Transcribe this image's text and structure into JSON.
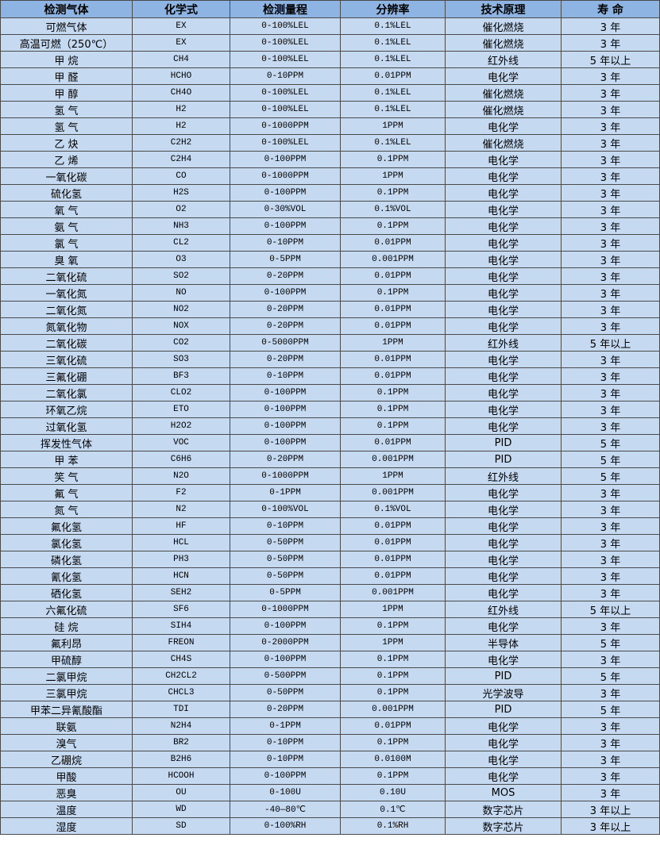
{
  "table": {
    "headers": [
      "检测气体",
      "化学式",
      "检测量程",
      "分辨率",
      "技术原理",
      "寿 命"
    ],
    "rows": [
      [
        "可燃气体",
        "EX",
        "0-100%LEL",
        "0.1%LEL",
        "催化燃烧",
        "3 年"
      ],
      [
        "高温可燃（250℃）",
        "EX",
        "0-100%LEL",
        "0.1%LEL",
        "催化燃烧",
        "3 年"
      ],
      [
        "甲 烷",
        "CH4",
        "0-100%LEL",
        "0.1%LEL",
        "红外线",
        "5 年以上"
      ],
      [
        "甲 醛",
        "HCHO",
        "0-10PPM",
        "0.01PPM",
        "电化学",
        "3 年"
      ],
      [
        "甲 醇",
        "CH4O",
        "0-100%LEL",
        "0.1%LEL",
        "催化燃烧",
        "3 年"
      ],
      [
        "氢 气",
        "H2",
        "0-100%LEL",
        "0.1%LEL",
        "催化燃烧",
        "3 年"
      ],
      [
        "氢 气",
        "H2",
        "0-1000PPM",
        "1PPM",
        "电化学",
        "3 年"
      ],
      [
        "乙 炔",
        "C2H2",
        "0-100%LEL",
        "0.1%LEL",
        "催化燃烧",
        "3 年"
      ],
      [
        "乙 烯",
        "C2H4",
        "0-100PPM",
        "0.1PPM",
        "电化学",
        "3 年"
      ],
      [
        "一氧化碳",
        "CO",
        "0-1000PPM",
        "1PPM",
        "电化学",
        "3 年"
      ],
      [
        "硫化氢",
        "H2S",
        "0-100PPM",
        "0.1PPM",
        "电化学",
        "3 年"
      ],
      [
        "氧 气",
        "O2",
        "0-30%VOL",
        "0.1%VOL",
        "电化学",
        "3 年"
      ],
      [
        "氨 气",
        "NH3",
        "0-100PPM",
        "0.1PPM",
        "电化学",
        "3 年"
      ],
      [
        "氯 气",
        "CL2",
        "0-10PPM",
        "0.01PPM",
        "电化学",
        "3 年"
      ],
      [
        "臭 氧",
        "O3",
        "0-5PPM",
        "0.001PPM",
        "电化学",
        "3 年"
      ],
      [
        "二氧化硫",
        "SO2",
        "0-20PPM",
        "0.01PPM",
        "电化学",
        "3 年"
      ],
      [
        "一氧化氮",
        "NO",
        "0-100PPM",
        "0.1PPM",
        "电化学",
        "3 年"
      ],
      [
        "二氧化氮",
        "NO2",
        "0-20PPM",
        "0.01PPM",
        "电化学",
        "3 年"
      ],
      [
        "氮氧化物",
        "NOX",
        "0-20PPM",
        "0.01PPM",
        "电化学",
        "3 年"
      ],
      [
        "二氧化碳",
        "CO2",
        "0-5000PPM",
        "1PPM",
        "红外线",
        "5 年以上"
      ],
      [
        "三氧化硫",
        "SO3",
        "0-20PPM",
        "0.01PPM",
        "电化学",
        "3 年"
      ],
      [
        "三氟化硼",
        "BF3",
        "0-10PPM",
        "0.01PPM",
        "电化学",
        "3 年"
      ],
      [
        "二氧化氯",
        "CLO2",
        "0-100PPM",
        "0.1PPM",
        "电化学",
        "3 年"
      ],
      [
        "环氧乙烷",
        "ETO",
        "0-100PPM",
        "0.1PPM",
        "电化学",
        "3 年"
      ],
      [
        "过氧化氢",
        "H2O2",
        "0-100PPM",
        "0.1PPM",
        "电化学",
        "3 年"
      ],
      [
        "挥发性气体",
        "VOC",
        "0-100PPM",
        "0.01PPM",
        "PID",
        "5 年"
      ],
      [
        "甲 苯",
        "C6H6",
        "0-20PPM",
        "0.001PPM",
        "PID",
        "5 年"
      ],
      [
        "笑 气",
        "N2O",
        "0-1000PPM",
        "1PPM",
        "红外线",
        "5 年"
      ],
      [
        "氟 气",
        "F2",
        "0-1PPM",
        "0.001PPM",
        "电化学",
        "3 年"
      ],
      [
        "氮 气",
        "N2",
        "0-100%VOL",
        "0.1%VOL",
        "电化学",
        "3 年"
      ],
      [
        "氟化氢",
        "HF",
        "0-10PPM",
        "0.01PPM",
        "电化学",
        "3 年"
      ],
      [
        "氯化氢",
        "HCL",
        "0-50PPM",
        "0.01PPM",
        "电化学",
        "3 年"
      ],
      [
        "磷化氢",
        "PH3",
        "0-50PPM",
        "0.01PPM",
        "电化学",
        "3 年"
      ],
      [
        "氰化氢",
        "HCN",
        "0-50PPM",
        "0.01PPM",
        "电化学",
        "3 年"
      ],
      [
        "硒化氢",
        "SEH2",
        "0-5PPM",
        "0.001PPM",
        "电化学",
        "3 年"
      ],
      [
        "六氟化硫",
        "SF6",
        "0-1000PPM",
        "1PPM",
        "红外线",
        "5 年以上"
      ],
      [
        "硅 烷",
        "SIH4",
        "0-100PPM",
        "0.1PPM",
        "电化学",
        "3 年"
      ],
      [
        "氟利昂",
        "FREON",
        "0-2000PPM",
        "1PPM",
        "半导体",
        "5 年"
      ],
      [
        "甲硫醇",
        "CH4S",
        "0-100PPM",
        "0.1PPM",
        "电化学",
        "3 年"
      ],
      [
        "二氯甲烷",
        "CH2CL2",
        "0-500PPM",
        "0.1PPM",
        "PID",
        "5 年"
      ],
      [
        "三氯甲烷",
        "CHCL3",
        "0-50PPM",
        "0.1PPM",
        "光学波导",
        "3 年"
      ],
      [
        "甲苯二异氰酸酯",
        "TDI",
        "0-20PPM",
        "0.001PPM",
        "PID",
        "5 年"
      ],
      [
        "联氨",
        "N2H4",
        "0-1PPM",
        "0.01PPM",
        "电化学",
        "3 年"
      ],
      [
        "溴气",
        "BR2",
        "0-10PPM",
        "0.1PPM",
        "电化学",
        "3 年"
      ],
      [
        "乙硼烷",
        "B2H6",
        "0-10PPM",
        "0.0100M",
        "电化学",
        "3 年"
      ],
      [
        "甲酸",
        "HCOOH",
        "0-100PPM",
        "0.1PPM",
        "电化学",
        "3 年"
      ],
      [
        "恶臭",
        "OU",
        "0-100U",
        "0.10U",
        "MOS",
        "3 年"
      ],
      [
        "温度",
        "WD",
        "-40—80℃",
        "0.1℃",
        "数字芯片",
        "3 年以上"
      ],
      [
        "湿度",
        "SD",
        "0-100%RH",
        "0.1%RH",
        "数字芯片",
        "3 年以上"
      ]
    ]
  },
  "colors": {
    "header_bg": "#8db4e2",
    "row_bg": "#c5d9f1",
    "border": "#4a4a4a"
  }
}
